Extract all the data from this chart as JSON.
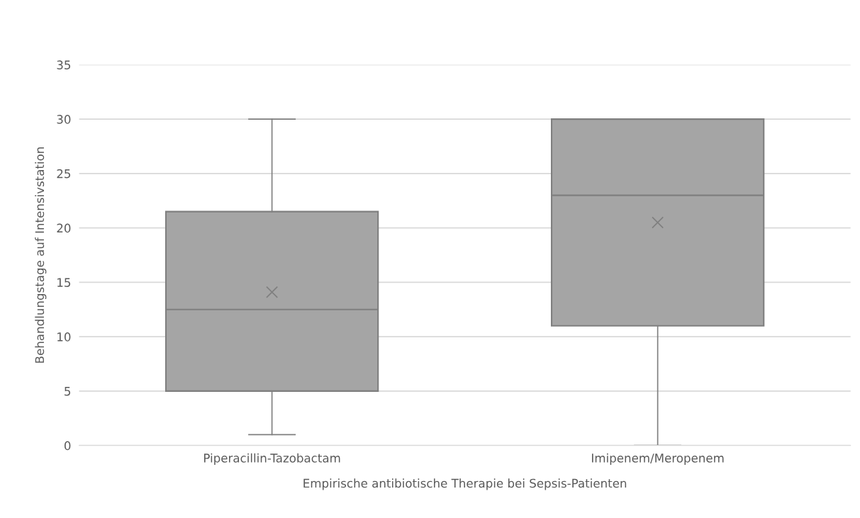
{
  "chart_data": {
    "type": "box",
    "xlabel": "Empirische antibiotische Therapie bei Sepsis-Patienten",
    "ylabel": "Behandlungstage auf Intensivstation",
    "categories": [
      "Piperacillin-Tazobactam",
      "Imipenem/Meropenem"
    ],
    "boxes": [
      {
        "low": 1,
        "q1": 5,
        "median": 12.5,
        "q3": 21.5,
        "high": 30,
        "mean": 14.1
      },
      {
        "low": 0,
        "q1": 11,
        "median": 23,
        "q3": 30,
        "high": 30,
        "mean": 20.5
      }
    ],
    "color": "#a5a5a5",
    "ylim": [
      0,
      35
    ],
    "yticks": [
      0,
      5,
      10,
      15,
      20,
      25,
      30,
      35
    ],
    "grid": "y",
    "legend": false,
    "marker": "cross"
  }
}
